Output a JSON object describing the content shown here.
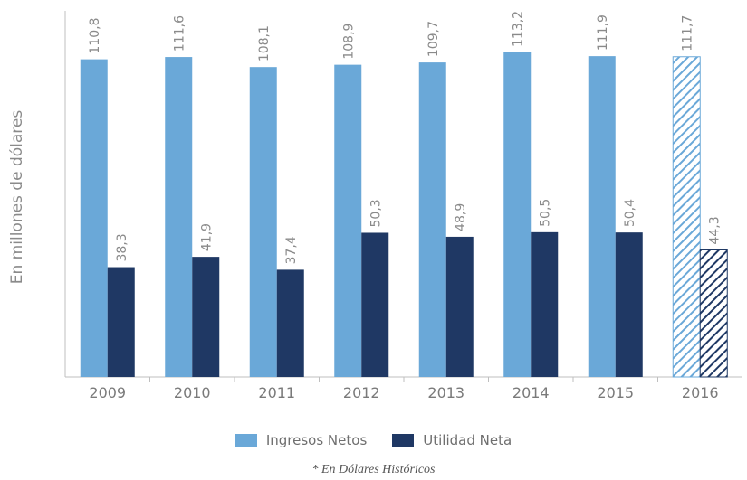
{
  "chart_data": {
    "type": "bar",
    "categories": [
      "2009",
      "2010",
      "2011",
      "2012",
      "2013",
      "2014",
      "2015",
      "2016"
    ],
    "series": [
      {
        "name": "Ingresos Netos",
        "values": [
          110.8,
          111.6,
          108.1,
          108.9,
          109.7,
          113.2,
          111.9,
          111.7
        ],
        "labels": [
          "110,8",
          "111,6",
          "108,1",
          "108,9",
          "109,7",
          "113,2",
          "111,9",
          "111,7"
        ],
        "color": "#6aa8d8"
      },
      {
        "name": "Utilidad Neta",
        "values": [
          38.3,
          41.9,
          37.4,
          50.3,
          48.9,
          50.5,
          50.4,
          44.3
        ],
        "labels": [
          "38,3",
          "41,9",
          "37,4",
          "50,3",
          "48,9",
          "50,5",
          "50,4",
          "44,3"
        ],
        "color": "#1f3864"
      }
    ],
    "hatched_categories": [
      "2016"
    ],
    "ylabel": "En millones de dólares",
    "xlabel": "",
    "ylim": [
      0,
      113.2
    ],
    "grid": false,
    "legend_position": "bottom",
    "note": "* En Dólares Históricos"
  }
}
